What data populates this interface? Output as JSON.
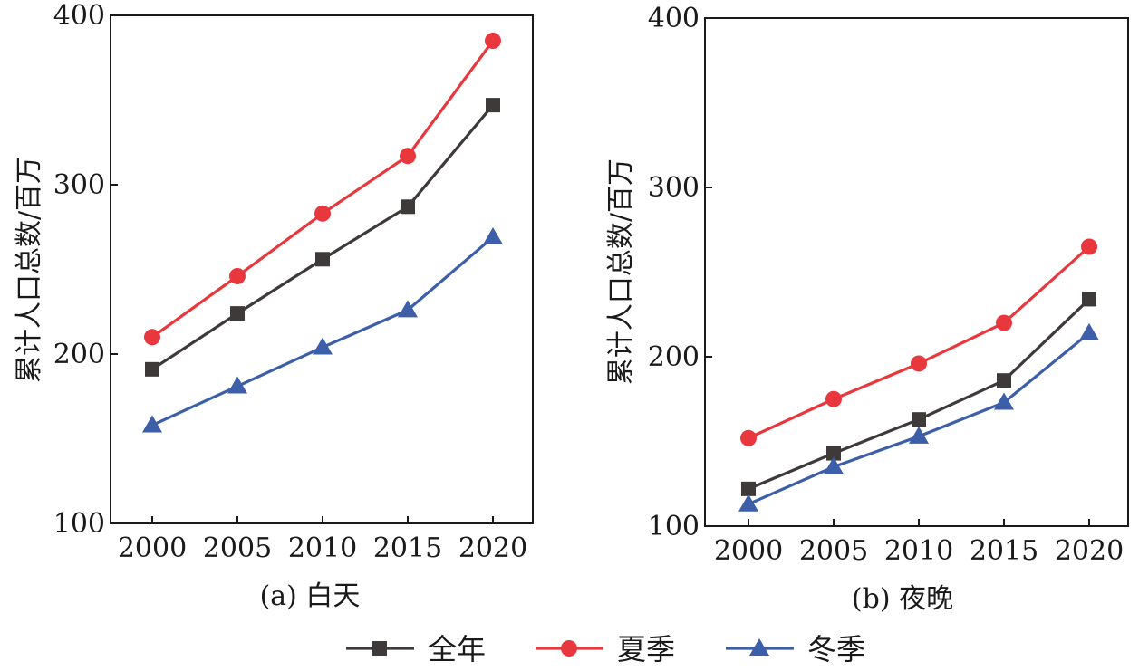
{
  "chart_data": [
    {
      "type": "line",
      "caption": "(a) 白天",
      "ylabel": "累计人口总数/百万",
      "xlabel": "",
      "x": [
        2000,
        2005,
        2010,
        2015,
        2020
      ],
      "x_ticks": [
        "2000",
        "2005",
        "2010",
        "2015",
        "2020"
      ],
      "ylim": [
        100,
        400
      ],
      "y_ticks": [
        "100",
        "200",
        "300",
        "400"
      ],
      "y_tick_values": [
        100,
        200,
        300,
        400
      ],
      "grid": false,
      "series": [
        {
          "name": "全年",
          "color": "#3f3a3a",
          "marker": "square",
          "values": [
            191,
            224,
            256,
            287,
            347
          ]
        },
        {
          "name": "夏季",
          "color": "#e8383d",
          "marker": "circle",
          "values": [
            210,
            246,
            283,
            317,
            385
          ]
        },
        {
          "name": "冬季",
          "color": "#3d5ea8",
          "marker": "triangle",
          "values": [
            158,
            181,
            204,
            226,
            269
          ]
        }
      ]
    },
    {
      "type": "line",
      "caption": "(b) 夜晚",
      "ylabel": "累计人口总数/百万",
      "xlabel": "",
      "x": [
        2000,
        2005,
        2010,
        2015,
        2020
      ],
      "x_ticks": [
        "2000",
        "2005",
        "2010",
        "2015",
        "2020"
      ],
      "ylim": [
        100,
        400
      ],
      "y_ticks": [
        "100",
        "200",
        "300",
        "400"
      ],
      "y_tick_values": [
        100,
        200,
        300,
        400
      ],
      "grid": false,
      "series": [
        {
          "name": "全年",
          "color": "#3f3a3a",
          "marker": "square",
          "values": [
            122,
            143,
            163,
            186,
            234
          ]
        },
        {
          "name": "夏季",
          "color": "#e8383d",
          "marker": "circle",
          "values": [
            152,
            175,
            196,
            220,
            265
          ]
        },
        {
          "name": "冬季",
          "color": "#3d5ea8",
          "marker": "triangle",
          "values": [
            113,
            135,
            153,
            173,
            214
          ]
        }
      ]
    }
  ],
  "legend": {
    "placement": "bottom",
    "items": [
      {
        "label": "全年",
        "color": "#3f3a3a",
        "marker": "square"
      },
      {
        "label": "夏季",
        "color": "#e8383d",
        "marker": "circle"
      },
      {
        "label": "冬季",
        "color": "#3d5ea8",
        "marker": "triangle"
      }
    ]
  }
}
